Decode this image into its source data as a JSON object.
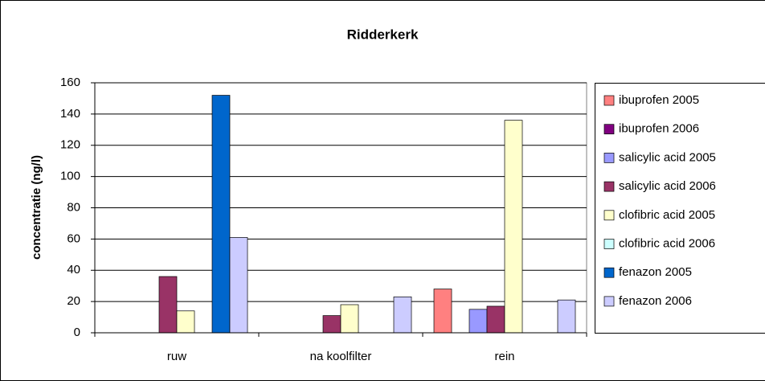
{
  "chart_data": {
    "type": "bar",
    "title": "Ridderkerk",
    "y_label": "concentratie (ng/l)",
    "categories": [
      "ruw",
      "na koolfilter",
      "rein"
    ],
    "series": [
      {
        "name": "ibuprofen 2005",
        "color": "#ff8080",
        "values": [
          0,
          0,
          28
        ]
      },
      {
        "name": "ibuprofen 2006",
        "color": "#800080",
        "values": [
          0,
          0,
          0
        ]
      },
      {
        "name": "salicylic acid 2005",
        "color": "#9999ff",
        "values": [
          0,
          0,
          15
        ]
      },
      {
        "name": "salicylic acid 2006",
        "color": "#993366",
        "values": [
          36,
          11,
          17
        ]
      },
      {
        "name": "clofibric acid 2005",
        "color": "#ffffcc",
        "values": [
          14,
          18,
          136
        ]
      },
      {
        "name": "clofibric acid 2006",
        "color": "#ccffff",
        "values": [
          0,
          0,
          0
        ]
      },
      {
        "name": "fenazon 2005",
        "color": "#0066cc",
        "values": [
          152,
          0,
          0
        ]
      },
      {
        "name": "fenazon 2006",
        "color": "#ccccff",
        "values": [
          61,
          23,
          21
        ]
      }
    ],
    "ylim": [
      0,
      160
    ],
    "yticks": [
      0,
      20,
      40,
      60,
      80,
      100,
      120,
      140,
      160
    ],
    "grid": true,
    "legend": "right"
  }
}
